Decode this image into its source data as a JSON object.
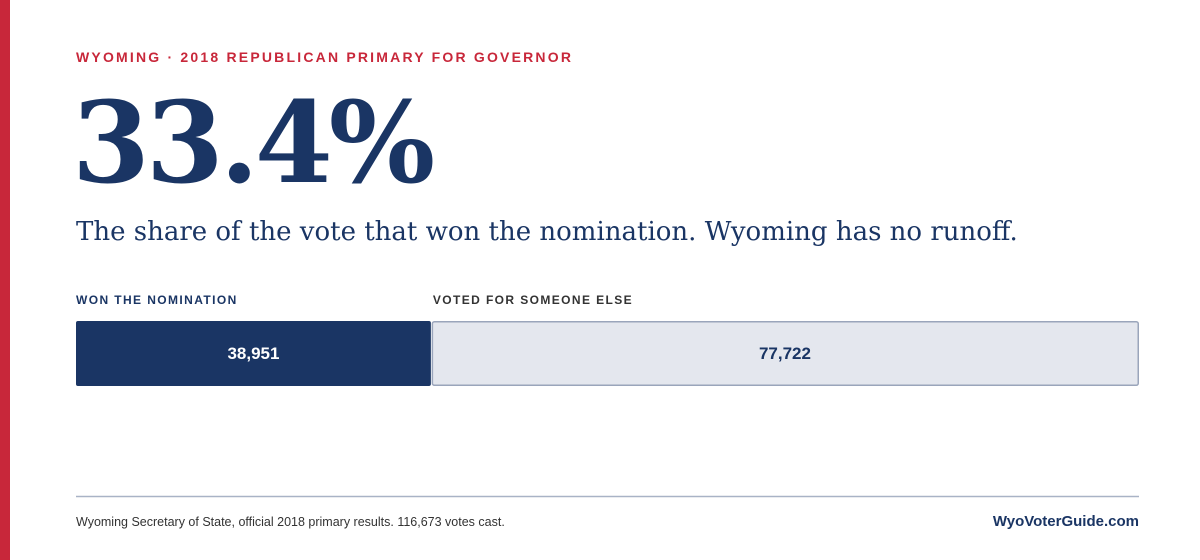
{
  "eyebrow": "WYOMING · 2018 REPUBLICAN PRIMARY FOR GOVERNOR",
  "headline": "33.4%",
  "subtitle": "The share of the vote that won the nomination. Wyoming has no runoff.",
  "chart_data": {
    "type": "split-bar",
    "series": [
      {
        "name": "WON THE NOMINATION",
        "color": "#1a3564",
        "values": [
          38951
        ],
        "value_labels": [
          "38,951"
        ]
      },
      {
        "name": "VOTED FOR SOMEONE ELSE",
        "color": "#e4e7ee",
        "values": [
          77722
        ],
        "value_labels": [
          "77,722"
        ]
      }
    ]
  },
  "footer": {
    "source": "Wyoming Secretary of State, official 2018 primary results. 116,673 votes cast.",
    "brand": "WyoVoterGuide.com"
  }
}
